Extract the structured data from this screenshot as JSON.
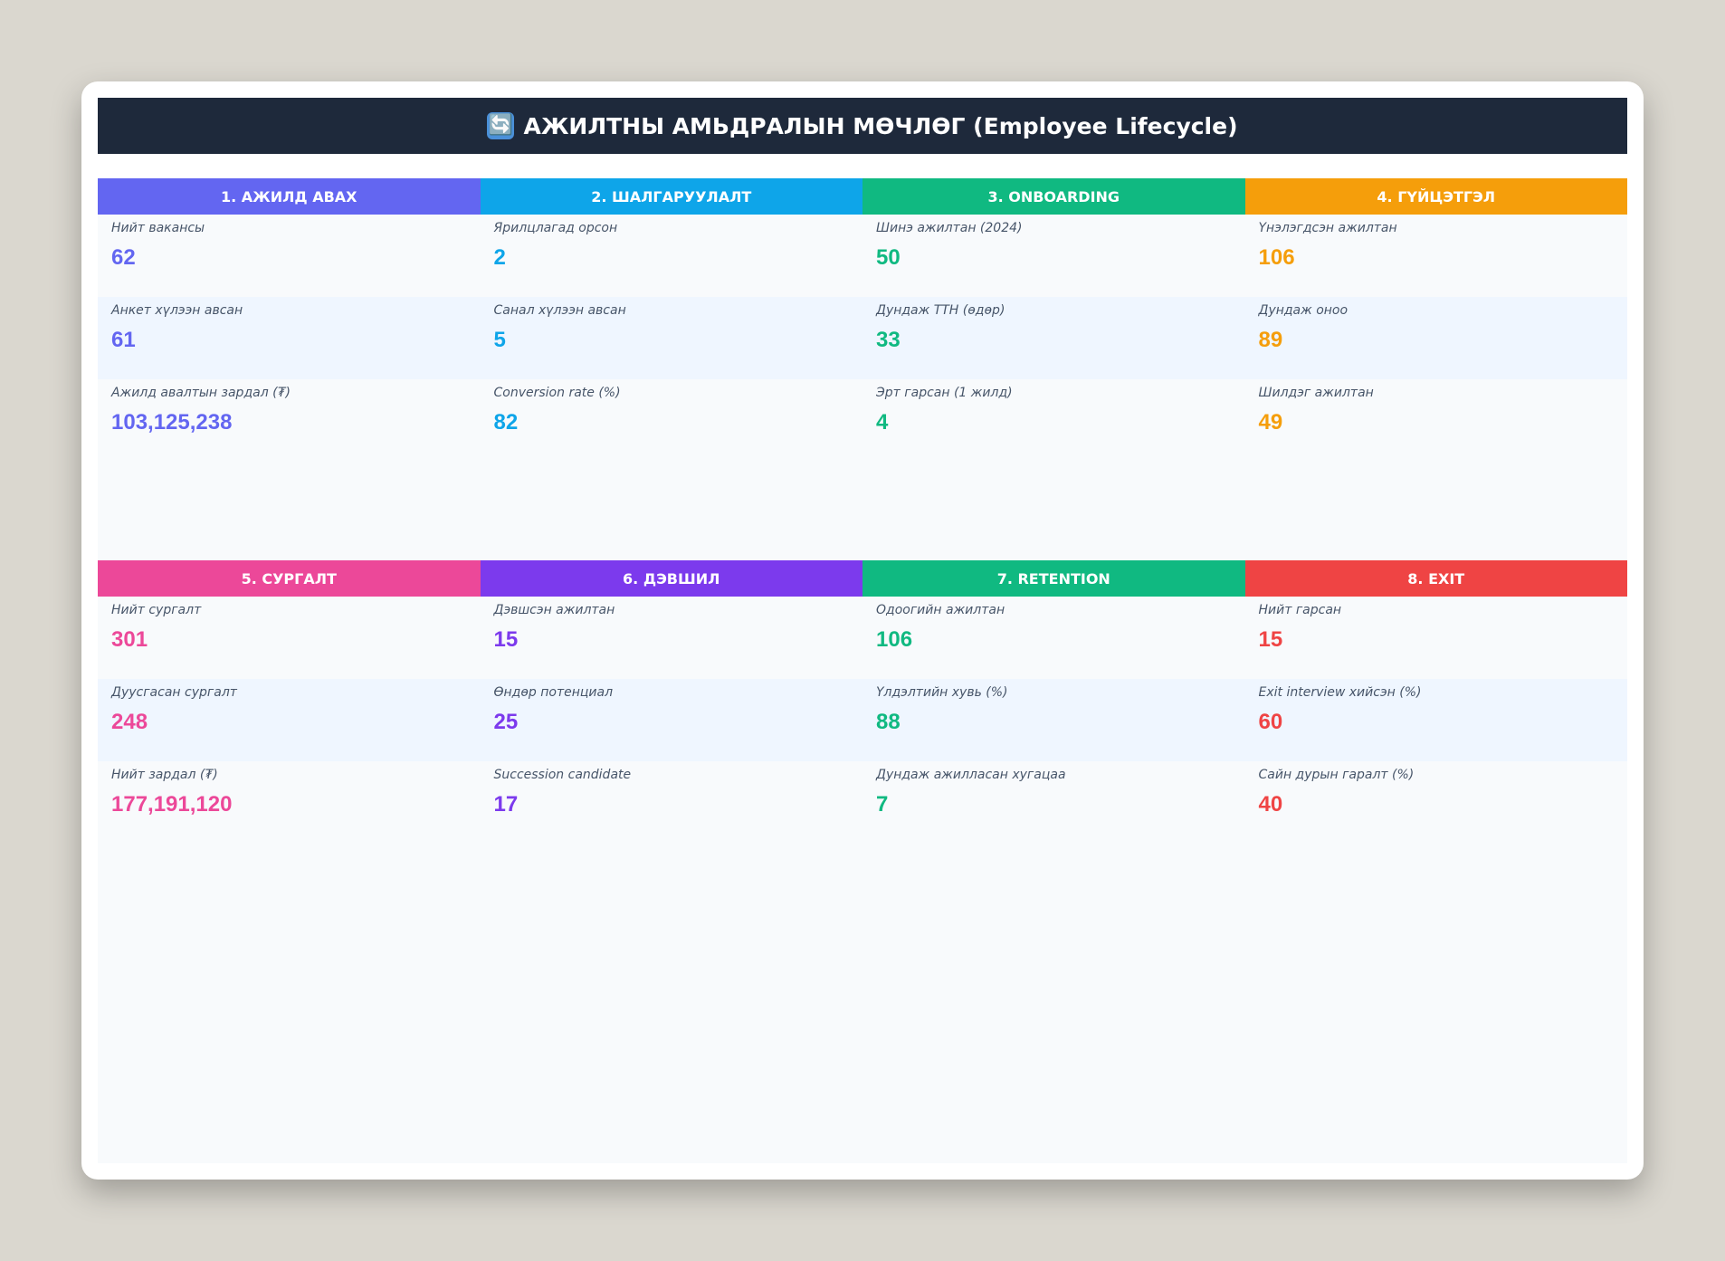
{
  "title": {
    "icon": "🔄",
    "text": "АЖИЛТНЫ АМЬДРАЛЫН МӨЧЛӨГ (Employee Lifecycle)"
  },
  "sections": [
    {
      "stages": [
        {
          "header": "1. АЖИЛД АВАХ",
          "color": "#6366f1",
          "metrics": [
            {
              "label": "Нийт вакансы",
              "value": "62"
            },
            {
              "label": "Анкет хүлээн авсан",
              "value": "61"
            },
            {
              "label": "Ажилд авалтын зардал (₮)",
              "value": "103,125,238"
            }
          ]
        },
        {
          "header": "2. ШАЛГАРУУЛАЛТ",
          "color": "#0ea5e9",
          "metrics": [
            {
              "label": "Ярилцлагад орсон",
              "value": "2"
            },
            {
              "label": "Санал хүлээн авсан",
              "value": "5"
            },
            {
              "label": "Conversion rate (%)",
              "value": "82"
            }
          ]
        },
        {
          "header": "3. ONBOARDING",
          "color": "#10b981",
          "metrics": [
            {
              "label": "Шинэ ажилтан (2024)",
              "value": "50"
            },
            {
              "label": "Дундаж ТТН (өдөр)",
              "value": "33"
            },
            {
              "label": "Эрт гарсан (1 жилд)",
              "value": "4"
            }
          ]
        },
        {
          "header": "4. ГҮЙЦЭТГЭЛ",
          "color": "#f59e0b",
          "metrics": [
            {
              "label": "Үнэлэгдсэн ажилтан",
              "value": "106"
            },
            {
              "label": "Дундаж оноо",
              "value": "89"
            },
            {
              "label": "Шилдэг ажилтан",
              "value": "49"
            }
          ]
        }
      ]
    },
    {
      "stages": [
        {
          "header": "5. СУРГАЛТ",
          "color": "#ec4899",
          "metrics": [
            {
              "label": "Нийт сургалт",
              "value": "301"
            },
            {
              "label": "Дуусгасан сургалт",
              "value": "248"
            },
            {
              "label": "Нийт зардал (₮)",
              "value": "177,191,120"
            }
          ]
        },
        {
          "header": "6. ДЭВШИЛ",
          "color": "#7c3aed",
          "metrics": [
            {
              "label": "Дэвшсэн ажилтан",
              "value": "15"
            },
            {
              "label": "Өндөр потенциал",
              "value": "25"
            },
            {
              "label": "Succession candidate",
              "value": "17"
            }
          ]
        },
        {
          "header": "7. RETENTION",
          "color": "#10b981",
          "metrics": [
            {
              "label": "Одоогийн ажилтан",
              "value": "106"
            },
            {
              "label": "Үлдэлтийн хувь (%)",
              "value": "88"
            },
            {
              "label": "Дундаж ажилласан хугацаа",
              "value": "7"
            }
          ]
        },
        {
          "header": "8. EXIT",
          "color": "#ef4444",
          "metrics": [
            {
              "label": "Нийт гарсан",
              "value": "15"
            },
            {
              "label": "Exit interview хийсэн (%)",
              "value": "60"
            },
            {
              "label": "Сайн дурын гаралт (%)",
              "value": "40"
            }
          ]
        }
      ]
    }
  ]
}
